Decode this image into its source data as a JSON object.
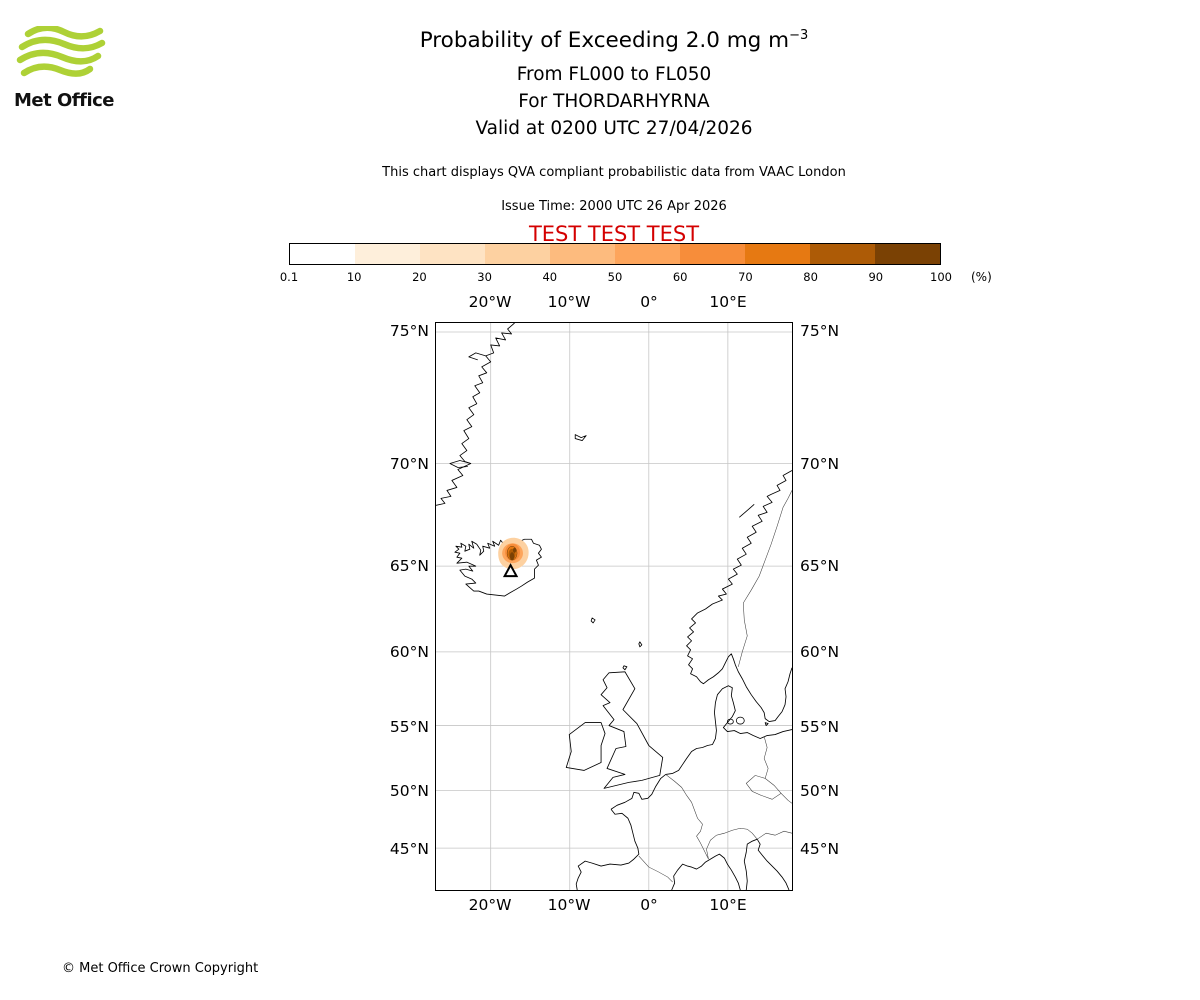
{
  "logo": {
    "brand": "Met Office",
    "wave_color": "#aed136"
  },
  "header": {
    "title_main": "Probability of Exceeding 2.0 mg m",
    "title_sup": "−3",
    "line1": "From FL000 to FL050",
    "line2": "For THORDARHYRNA",
    "line3": "Valid at 0200 UTC 27/04/2026",
    "description": "This chart displays QVA compliant probabilistic data from VAAC London",
    "issue_time": "Issue Time: 2000 UTC 26 Apr 2026",
    "test_banner": "TEST TEST TEST",
    "test_color": "#d40000"
  },
  "colorbar": {
    "unit": "(%)",
    "tick_labels": [
      "0.1",
      "10",
      "20",
      "30",
      "40",
      "50",
      "60",
      "70",
      "80",
      "90",
      "100"
    ],
    "colors": [
      "#ffffff",
      "#feefdb",
      "#fee3c3",
      "#fdd1a1",
      "#fdbb7e",
      "#fda55c",
      "#f78d3a",
      "#e67912",
      "#ad5b06",
      "#7a4104"
    ]
  },
  "map": {
    "lon_labels": [
      "20°W",
      "10°W",
      "0°",
      "10°E"
    ],
    "lat_labels": [
      "75°N",
      "70°N",
      "65°N",
      "60°N",
      "55°N",
      "50°N",
      "45°N"
    ]
  },
  "footer": {
    "copyright": "© Met Office Crown Copyright"
  },
  "chart_data": {
    "type": "heatmap",
    "title": "Probability of Exceeding 2.0 mg m−3",
    "subtitle": [
      "From FL000 to FL050",
      "For THORDARHYRNA",
      "Valid at 0200 UTC 27/04/2026"
    ],
    "source_note": "This chart displays QVA compliant probabilistic data from VAAC London",
    "issue_time": "2000 UTC 26 Apr 2026",
    "status": "TEST TEST TEST",
    "legend": {
      "label": "(%)",
      "bins": [
        0.1,
        10,
        20,
        30,
        40,
        50,
        60,
        70,
        80,
        90,
        100
      ],
      "position": "top"
    },
    "projection": "mercator",
    "lon_ticks_deg": [
      -20,
      -10,
      0,
      10
    ],
    "lat_ticks_deg": [
      75,
      70,
      65,
      60,
      55,
      50,
      45
    ],
    "grid": true,
    "volcano": {
      "name": "THORDARHYRNA",
      "approx_lon_deg": -17.5,
      "approx_lat_deg": 64.3,
      "marker": "triangle"
    },
    "ash_cloud": {
      "approx_center_lon_deg": -17.2,
      "approx_center_lat_deg": 65.0,
      "approx_radius_deg": 1.2,
      "max_bin_percent": "90-100"
    }
  }
}
